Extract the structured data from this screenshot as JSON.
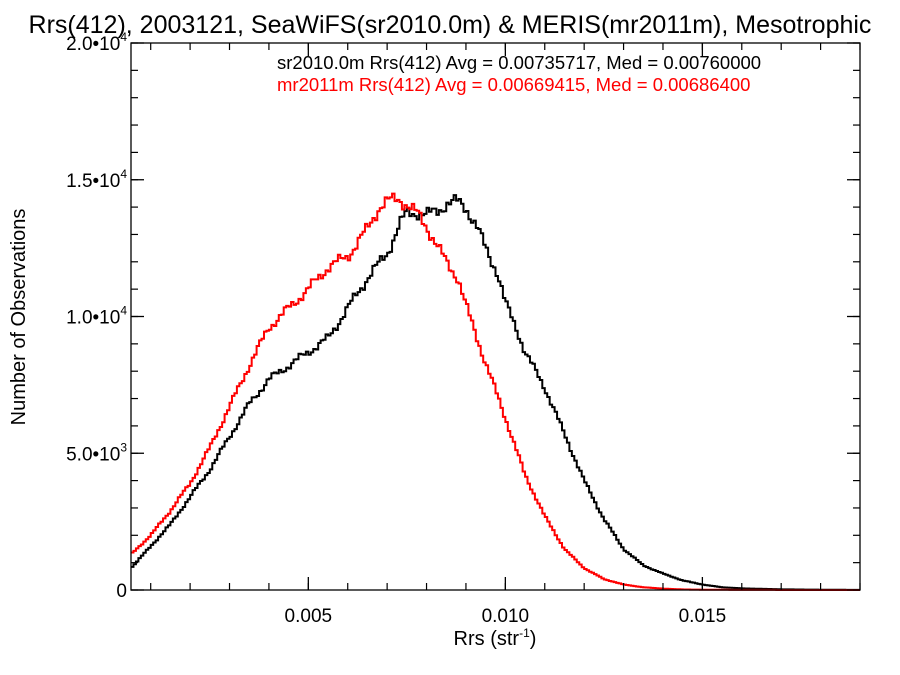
{
  "chart_data": {
    "type": "line",
    "step": true,
    "title": "Rrs(412), 2003121, SeaWiFS(sr2010.0m) & MERIS(mr2011m), Mesotrophic",
    "xlabel": {
      "text": "Rrs (str",
      "exponent": "-1",
      "suffix": ")"
    },
    "ylabel": "Number of Observations",
    "xlim": [
      0.0005,
      0.019
    ],
    "ylim": [
      0,
      20000
    ],
    "x_ticks": [
      {
        "value": 0.005,
        "label": "0.005"
      },
      {
        "value": 0.01,
        "label": "0.010"
      },
      {
        "value": 0.015,
        "label": "0.015"
      }
    ],
    "y_ticks": [
      {
        "value": 0,
        "mantissa": "0",
        "exponent": ""
      },
      {
        "value": 5000,
        "mantissa": "5.0•10",
        "exponent": "3"
      },
      {
        "value": 10000,
        "mantissa": "1.0•10",
        "exponent": "4"
      },
      {
        "value": 15000,
        "mantissa": "1.5•10",
        "exponent": "4"
      },
      {
        "value": 20000,
        "mantissa": "2.0•10",
        "exponent": "4"
      }
    ],
    "x_minor_step": 0.001,
    "y_minor_step": 1000,
    "grid": false,
    "legend_position": "top-right",
    "legend": [
      {
        "text": "sr2010.0m Rrs(412) Avg = 0.00735717, Med = 0.00760000",
        "color": "#000000"
      },
      {
        "text": "mr2011m Rrs(412) Avg = 0.00669415, Med = 0.00686400",
        "color": "#ff0000"
      }
    ],
    "series": [
      {
        "color": "#000000",
        "x": [
          0.0005,
          0.001,
          0.0015,
          0.002,
          0.0025,
          0.003,
          0.0035,
          0.004,
          0.0045,
          0.005,
          0.0055,
          0.006,
          0.0065,
          0.007,
          0.0073,
          0.0075,
          0.0078,
          0.008,
          0.0083,
          0.0085,
          0.0088,
          0.009,
          0.0093,
          0.0095,
          0.0098,
          0.01,
          0.0103,
          0.0105,
          0.011,
          0.0115,
          0.012,
          0.0125,
          0.013,
          0.0135,
          0.014,
          0.0145,
          0.015,
          0.0155,
          0.016,
          0.017,
          0.018,
          0.019
        ],
        "y": [
          800,
          1600,
          2400,
          3400,
          4400,
          5600,
          6800,
          7700,
          8200,
          8700,
          9200,
          10300,
          11400,
          12300,
          13300,
          13800,
          13800,
          13700,
          13900,
          14100,
          14200,
          14000,
          13200,
          12500,
          11600,
          10500,
          9500,
          8700,
          7400,
          5700,
          4000,
          2600,
          1500,
          900,
          600,
          350,
          200,
          100,
          60,
          25,
          10,
          5
        ]
      },
      {
        "color": "#ff0000",
        "x": [
          0.0005,
          0.001,
          0.0015,
          0.002,
          0.0025,
          0.003,
          0.0035,
          0.004,
          0.0045,
          0.005,
          0.0055,
          0.006,
          0.0065,
          0.0068,
          0.007,
          0.0073,
          0.0075,
          0.0078,
          0.008,
          0.0083,
          0.0085,
          0.0088,
          0.009,
          0.0095,
          0.01,
          0.0105,
          0.011,
          0.0115,
          0.012,
          0.0125,
          0.013,
          0.0135,
          0.014,
          0.0145,
          0.015,
          0.016,
          0.017,
          0.019
        ],
        "y": [
          1300,
          2000,
          2900,
          3900,
          5200,
          6700,
          8200,
          9600,
          10300,
          11000,
          11800,
          12200,
          13200,
          14000,
          14200,
          14300,
          14100,
          13700,
          13300,
          12500,
          12000,
          11400,
          10400,
          8300,
          6300,
          4200,
          2700,
          1500,
          800,
          400,
          200,
          100,
          50,
          20,
          10,
          5,
          2,
          0
        ]
      }
    ]
  }
}
